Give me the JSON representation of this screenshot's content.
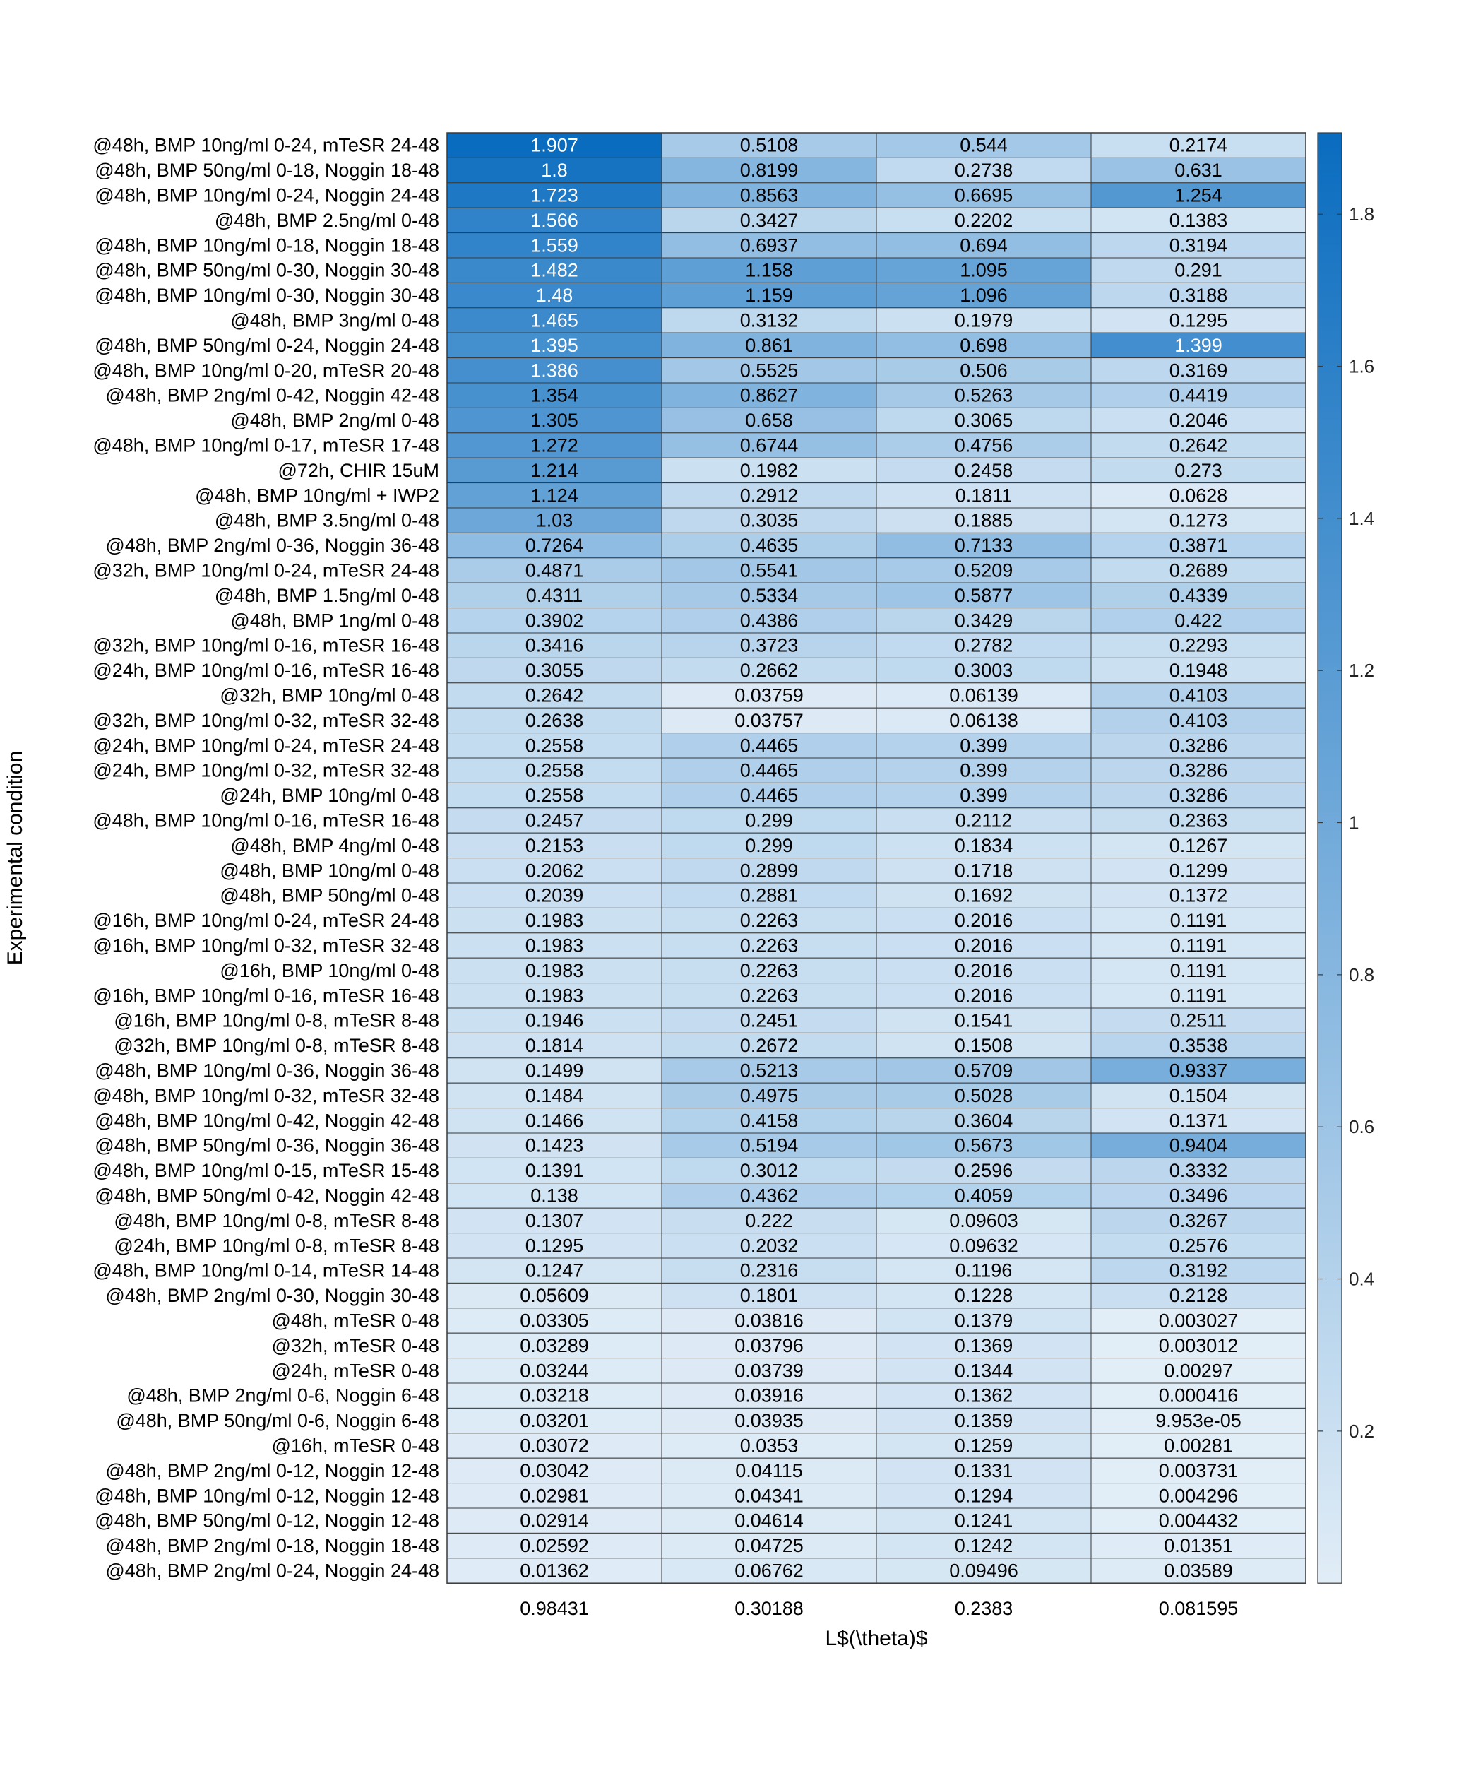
{
  "chart_data": {
    "type": "heatmap",
    "ylabel": "Experimental condition",
    "xlabel": "L$(\\theta)$",
    "x_tick_labels": [
      "0.98431",
      "0.30188",
      "0.2383",
      "0.081595"
    ],
    "colorbar": {
      "range": [
        0,
        1.907
      ],
      "ticks": [
        0.2,
        0.4,
        0.6,
        0.8,
        1,
        1.2,
        1.4,
        1.6,
        1.8
      ],
      "tick_labels": [
        "0.2",
        "0.4",
        "0.6",
        "0.8",
        "1",
        "1.2",
        "1.4",
        "1.6",
        "1.8"
      ],
      "color_low": "#e1edf7",
      "color_high": "#0a6cbf"
    },
    "grid": true,
    "rows": [
      {
        "label": "@48h, BMP 10ng/ml 0-24, mTeSR 24-48",
        "values": [
          "1.907",
          "0.5108",
          "0.544",
          "0.2174"
        ]
      },
      {
        "label": "@48h, BMP 50ng/ml 0-18, Noggin 18-48",
        "values": [
          "1.8",
          "0.8199",
          "0.2738",
          "0.631"
        ]
      },
      {
        "label": "@48h, BMP 10ng/ml 0-24, Noggin 24-48",
        "values": [
          "1.723",
          "0.8563",
          "0.6695",
          "1.254"
        ]
      },
      {
        "label": "@48h, BMP 2.5ng/ml 0-48",
        "values": [
          "1.566",
          "0.3427",
          "0.2202",
          "0.1383"
        ]
      },
      {
        "label": "@48h, BMP 10ng/ml 0-18, Noggin 18-48",
        "values": [
          "1.559",
          "0.6937",
          "0.694",
          "0.3194"
        ]
      },
      {
        "label": "@48h, BMP 50ng/ml 0-30, Noggin 30-48",
        "values": [
          "1.482",
          "1.158",
          "1.095",
          "0.291"
        ]
      },
      {
        "label": "@48h, BMP 10ng/ml 0-30, Noggin 30-48",
        "values": [
          "1.48",
          "1.159",
          "1.096",
          "0.3188"
        ]
      },
      {
        "label": "@48h, BMP 3ng/ml 0-48",
        "values": [
          "1.465",
          "0.3132",
          "0.1979",
          "0.1295"
        ]
      },
      {
        "label": "@48h, BMP 50ng/ml 0-24, Noggin 24-48",
        "values": [
          "1.395",
          "0.861",
          "0.698",
          "1.399"
        ]
      },
      {
        "label": "@48h, BMP 10ng/ml 0-20, mTeSR 20-48",
        "values": [
          "1.386",
          "0.5525",
          "0.506",
          "0.3169"
        ]
      },
      {
        "label": "@48h, BMP 2ng/ml 0-42, Noggin 42-48",
        "values": [
          "1.354",
          "0.8627",
          "0.5263",
          "0.4419"
        ]
      },
      {
        "label": "@48h, BMP 2ng/ml 0-48",
        "values": [
          "1.305",
          "0.658",
          "0.3065",
          "0.2046"
        ]
      },
      {
        "label": "@48h, BMP 10ng/ml 0-17, mTeSR 17-48",
        "values": [
          "1.272",
          "0.6744",
          "0.4756",
          "0.2642"
        ]
      },
      {
        "label": "@72h, CHIR 15uM",
        "values": [
          "1.214",
          "0.1982",
          "0.2458",
          "0.273"
        ]
      },
      {
        "label": "@48h, BMP 10ng/ml + IWP2",
        "values": [
          "1.124",
          "0.2912",
          "0.1811",
          "0.0628"
        ]
      },
      {
        "label": "@48h, BMP 3.5ng/ml 0-48",
        "values": [
          "1.03",
          "0.3035",
          "0.1885",
          "0.1273"
        ]
      },
      {
        "label": "@48h, BMP 2ng/ml 0-36, Noggin 36-48",
        "values": [
          "0.7264",
          "0.4635",
          "0.7133",
          "0.3871"
        ]
      },
      {
        "label": "@32h, BMP 10ng/ml 0-24, mTeSR 24-48",
        "values": [
          "0.4871",
          "0.5541",
          "0.5209",
          "0.2689"
        ]
      },
      {
        "label": "@48h, BMP 1.5ng/ml 0-48",
        "values": [
          "0.4311",
          "0.5334",
          "0.5877",
          "0.4339"
        ]
      },
      {
        "label": "@48h, BMP 1ng/ml 0-48",
        "values": [
          "0.3902",
          "0.4386",
          "0.3429",
          "0.422"
        ]
      },
      {
        "label": "@32h, BMP 10ng/ml 0-16, mTeSR 16-48",
        "values": [
          "0.3416",
          "0.3723",
          "0.2782",
          "0.2293"
        ]
      },
      {
        "label": "@24h, BMP 10ng/ml 0-16, mTeSR 16-48",
        "values": [
          "0.3055",
          "0.2662",
          "0.3003",
          "0.1948"
        ]
      },
      {
        "label": "@32h, BMP 10ng/ml 0-48",
        "values": [
          "0.2642",
          "0.03759",
          "0.06139",
          "0.4103"
        ]
      },
      {
        "label": "@32h, BMP 10ng/ml 0-32, mTeSR 32-48",
        "values": [
          "0.2638",
          "0.03757",
          "0.06138",
          "0.4103"
        ]
      },
      {
        "label": "@24h, BMP 10ng/ml 0-24, mTeSR 24-48",
        "values": [
          "0.2558",
          "0.4465",
          "0.399",
          "0.3286"
        ]
      },
      {
        "label": "@24h, BMP 10ng/ml 0-32, mTeSR 32-48",
        "values": [
          "0.2558",
          "0.4465",
          "0.399",
          "0.3286"
        ]
      },
      {
        "label": "@24h, BMP 10ng/ml 0-48",
        "values": [
          "0.2558",
          "0.4465",
          "0.399",
          "0.3286"
        ]
      },
      {
        "label": "@48h, BMP 10ng/ml 0-16, mTeSR 16-48",
        "values": [
          "0.2457",
          "0.299",
          "0.2112",
          "0.2363"
        ]
      },
      {
        "label": "@48h, BMP 4ng/ml 0-48",
        "values": [
          "0.2153",
          "0.299",
          "0.1834",
          "0.1267"
        ]
      },
      {
        "label": "@48h, BMP 10ng/ml 0-48",
        "values": [
          "0.2062",
          "0.2899",
          "0.1718",
          "0.1299"
        ]
      },
      {
        "label": "@48h, BMP 50ng/ml 0-48",
        "values": [
          "0.2039",
          "0.2881",
          "0.1692",
          "0.1372"
        ]
      },
      {
        "label": "@16h, BMP 10ng/ml 0-24, mTeSR 24-48",
        "values": [
          "0.1983",
          "0.2263",
          "0.2016",
          "0.1191"
        ]
      },
      {
        "label": "@16h, BMP 10ng/ml 0-32, mTeSR 32-48",
        "values": [
          "0.1983",
          "0.2263",
          "0.2016",
          "0.1191"
        ]
      },
      {
        "label": "@16h, BMP 10ng/ml 0-48",
        "values": [
          "0.1983",
          "0.2263",
          "0.2016",
          "0.1191"
        ]
      },
      {
        "label": "@16h, BMP 10ng/ml 0-16, mTeSR 16-48",
        "values": [
          "0.1983",
          "0.2263",
          "0.2016",
          "0.1191"
        ]
      },
      {
        "label": "@16h, BMP 10ng/ml 0-8, mTeSR 8-48",
        "values": [
          "0.1946",
          "0.2451",
          "0.1541",
          "0.2511"
        ]
      },
      {
        "label": "@32h, BMP 10ng/ml 0-8, mTeSR 8-48",
        "values": [
          "0.1814",
          "0.2672",
          "0.1508",
          "0.3538"
        ]
      },
      {
        "label": "@48h, BMP 10ng/ml 0-36, Noggin 36-48",
        "values": [
          "0.1499",
          "0.5213",
          "0.5709",
          "0.9337"
        ]
      },
      {
        "label": "@48h, BMP 10ng/ml 0-32, mTeSR 32-48",
        "values": [
          "0.1484",
          "0.4975",
          "0.5028",
          "0.1504"
        ]
      },
      {
        "label": "@48h, BMP 10ng/ml 0-42, Noggin 42-48",
        "values": [
          "0.1466",
          "0.4158",
          "0.3604",
          "0.1371"
        ]
      },
      {
        "label": "@48h, BMP 50ng/ml 0-36, Noggin 36-48",
        "values": [
          "0.1423",
          "0.5194",
          "0.5673",
          "0.9404"
        ]
      },
      {
        "label": "@48h, BMP 10ng/ml 0-15, mTeSR 15-48",
        "values": [
          "0.1391",
          "0.3012",
          "0.2596",
          "0.3332"
        ]
      },
      {
        "label": "@48h, BMP 50ng/ml 0-42, Noggin 42-48",
        "values": [
          "0.138",
          "0.4362",
          "0.4059",
          "0.3496"
        ]
      },
      {
        "label": "@48h, BMP 10ng/ml 0-8, mTeSR 8-48",
        "values": [
          "0.1307",
          "0.222",
          "0.09603",
          "0.3267"
        ]
      },
      {
        "label": "@24h, BMP 10ng/ml 0-8, mTeSR 8-48",
        "values": [
          "0.1295",
          "0.2032",
          "0.09632",
          "0.2576"
        ]
      },
      {
        "label": "@48h, BMP 10ng/ml 0-14, mTeSR 14-48",
        "values": [
          "0.1247",
          "0.2316",
          "0.1196",
          "0.3192"
        ]
      },
      {
        "label": "@48h, BMP 2ng/ml 0-30, Noggin 30-48",
        "values": [
          "0.05609",
          "0.1801",
          "0.1228",
          "0.2128"
        ]
      },
      {
        "label": "@48h, mTeSR 0-48",
        "values": [
          "0.03305",
          "0.03816",
          "0.1379",
          "0.003027"
        ]
      },
      {
        "label": "@32h, mTeSR 0-48",
        "values": [
          "0.03289",
          "0.03796",
          "0.1369",
          "0.003012"
        ]
      },
      {
        "label": "@24h, mTeSR 0-48",
        "values": [
          "0.03244",
          "0.03739",
          "0.1344",
          "0.00297"
        ]
      },
      {
        "label": "@48h, BMP 2ng/ml 0-6, Noggin 6-48",
        "values": [
          "0.03218",
          "0.03916",
          "0.1362",
          "0.000416"
        ]
      },
      {
        "label": "@48h, BMP 50ng/ml 0-6, Noggin 6-48",
        "values": [
          "0.03201",
          "0.03935",
          "0.1359",
          "9.953e-05"
        ]
      },
      {
        "label": "@16h, mTeSR 0-48",
        "values": [
          "0.03072",
          "0.0353",
          "0.1259",
          "0.00281"
        ]
      },
      {
        "label": "@48h, BMP 2ng/ml 0-12, Noggin 12-48",
        "values": [
          "0.03042",
          "0.04115",
          "0.1331",
          "0.003731"
        ]
      },
      {
        "label": "@48h, BMP 10ng/ml 0-12, Noggin 12-48",
        "values": [
          "0.02981",
          "0.04341",
          "0.1294",
          "0.004296"
        ]
      },
      {
        "label": "@48h, BMP 50ng/ml 0-12, Noggin 12-48",
        "values": [
          "0.02914",
          "0.04614",
          "0.1241",
          "0.004432"
        ]
      },
      {
        "label": "@48h, BMP 2ng/ml 0-18, Noggin 18-48",
        "values": [
          "0.02592",
          "0.04725",
          "0.1242",
          "0.01351"
        ]
      },
      {
        "label": "@48h, BMP 2ng/ml 0-24, Noggin 24-48",
        "values": [
          "0.01362",
          "0.06762",
          "0.09496",
          "0.03589"
        ]
      }
    ]
  }
}
